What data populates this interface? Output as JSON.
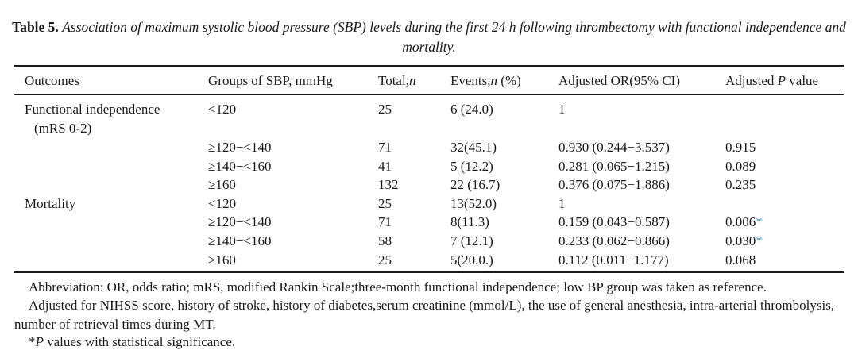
{
  "caption": {
    "label": "Table 5.",
    "text": "Association of maximum systolic blood pressure (SBP) levels during the first 24 h following thrombectomy with functional independence and mortality."
  },
  "headers": {
    "outcomes": "Outcomes",
    "groups": "Groups of SBP, mmHg",
    "total": "Total,",
    "total_n": "n",
    "events": "Events,",
    "events_n": "n",
    "events_pct": " (%)",
    "or": "Adjusted OR(95% CI)",
    "p_prefix": "Adjusted ",
    "p_italic": "P",
    "p_suffix": " value"
  },
  "outcomes": {
    "fi_line1": "Functional independence",
    "fi_line2": "(mRS 0-2)",
    "mortality": "Mortality"
  },
  "rows": [
    {
      "group": "<120",
      "total": "25",
      "events": "6 (24.0)",
      "or": "1",
      "p": "",
      "sig": ""
    },
    {
      "group": "≥120−<140",
      "total": "71",
      "events": "32(45.1)",
      "or": "0.930 (0.244−3.537)",
      "p": "0.915",
      "sig": ""
    },
    {
      "group": "≥140−<160",
      "total": "41",
      "events": "5 (12.2)",
      "or": "0.281 (0.065−1.215)",
      "p": "0.089",
      "sig": ""
    },
    {
      "group": "≥160",
      "total": "132",
      "events": "22 (16.7)",
      "or": "0.376 (0.075−1.886)",
      "p": "0.235",
      "sig": ""
    },
    {
      "group": "<120",
      "total": "25",
      "events": "13(52.0)",
      "or": "1",
      "p": "",
      "sig": ""
    },
    {
      "group": "≥120−<140",
      "total": "71",
      "events": "8(11.3)",
      "or": "0.159 (0.043−0.587)",
      "p": "0.006",
      "sig": "*"
    },
    {
      "group": "≥140−<160",
      "total": "58",
      "events": "7 (12.1)",
      "or": "0.233 (0.062−0.866)",
      "p": "0.030",
      "sig": "*"
    },
    {
      "group": "≥160",
      "total": "25",
      "events": "5(20.0.)",
      "or": "0.112 (0.011−1.177)",
      "p": "0.068",
      "sig": ""
    }
  ],
  "notes": {
    "abbrev": "Abbreviation: OR, odds ratio; mRS, modified Rankin Scale;three-month functional independence; low BP group was taken as reference.",
    "adjusted": "Adjusted for NIHSS score, history of stroke, history of diabetes,serum creatinine (mmol/L), the use of general anesthesia, intra-arterial thrombolysis, number of retrieval times during MT.",
    "sig_star": "*",
    "sig_p": "P",
    "sig_text": " values with statistical significance.",
    "sig_color": "#2a8fb5"
  }
}
